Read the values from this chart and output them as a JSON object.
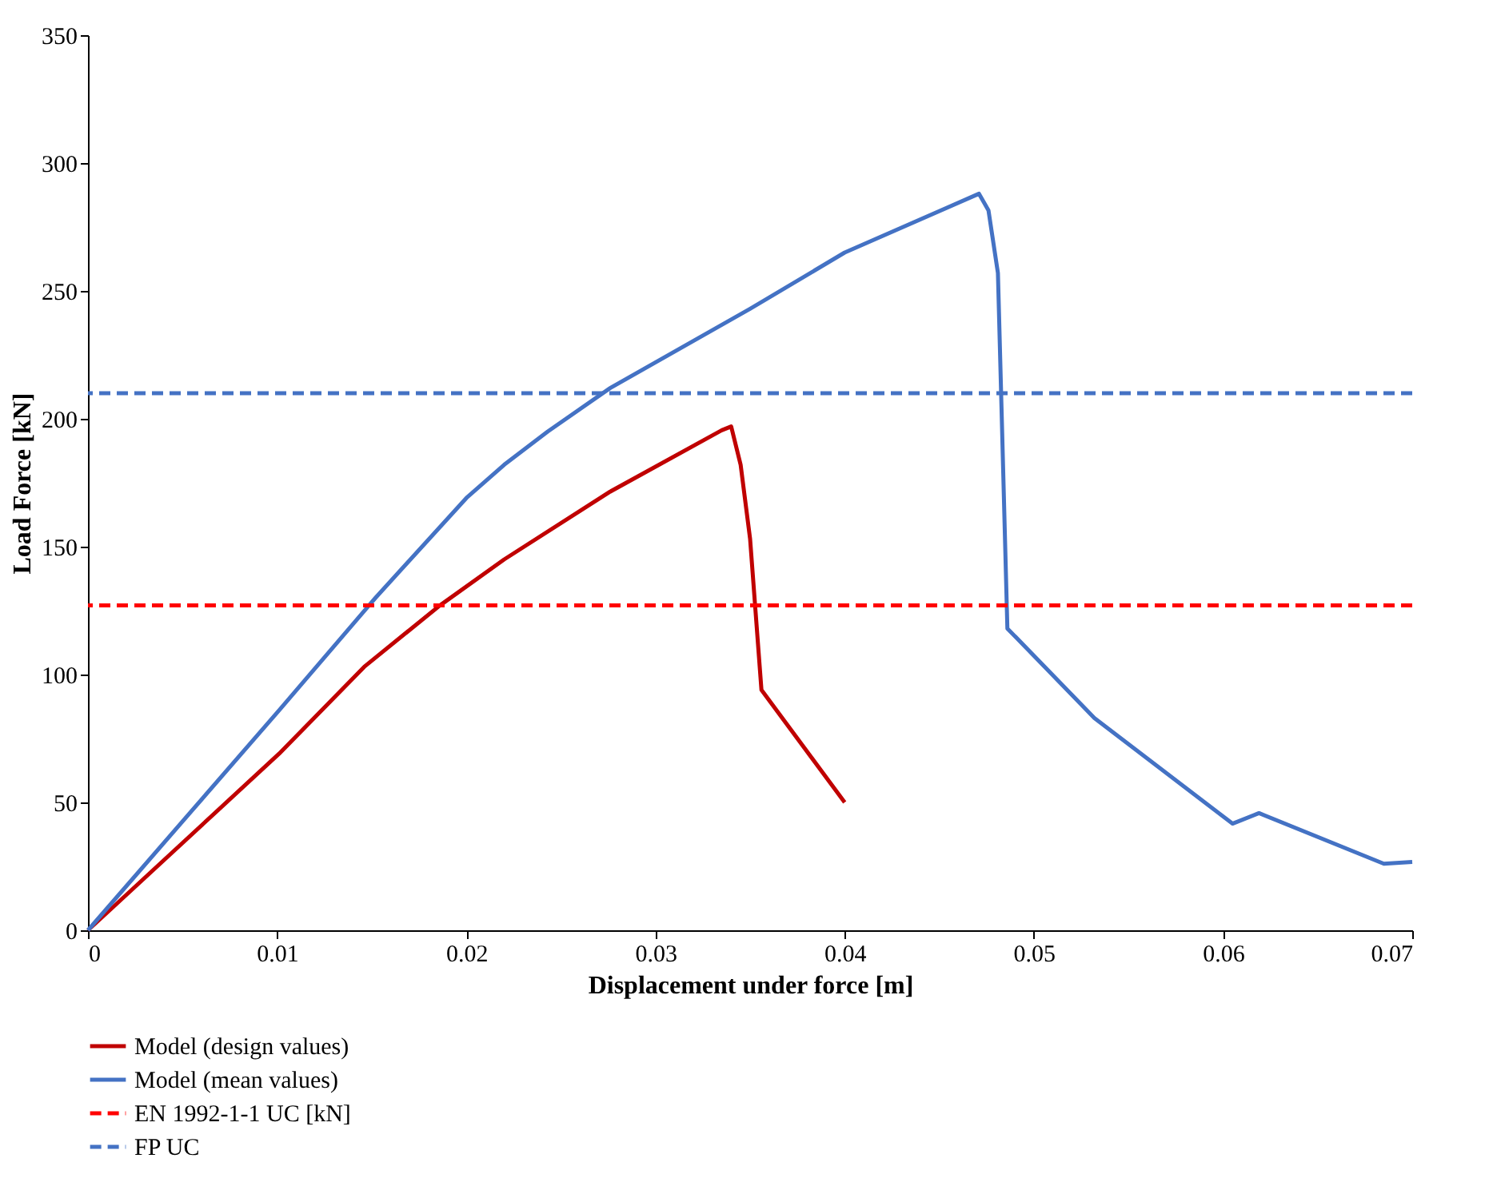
{
  "chart_data": {
    "type": "line",
    "xlabel": "Displacement under force [m]",
    "ylabel": "Load Force [kN]",
    "xlim": [
      0,
      0.07
    ],
    "xticks": [
      0,
      0.01,
      0.02,
      0.03,
      0.04,
      0.05,
      0.06,
      0.07
    ],
    "ylim": [
      0,
      350
    ],
    "yticks": [
      0,
      50,
      100,
      150,
      200,
      250,
      300,
      350
    ],
    "grid": false,
    "legend": "bottom",
    "line_style": "solid",
    "series": [
      {
        "name": "Model (design values)",
        "color": "#c00000",
        "x": [
          0,
          0.0101,
          0.0146,
          0.0186,
          0.022,
          0.0276,
          0.0335,
          0.034,
          0.0345,
          0.035,
          0.0356,
          0.04
        ],
        "values": [
          0,
          69,
          103,
          127,
          145,
          171.5,
          195.5,
          197,
          182,
          153,
          94,
          50
        ]
      },
      {
        "name": "Model (mean values)",
        "color": "#4472c4",
        "x": [
          0,
          0.0101,
          0.0152,
          0.02,
          0.022,
          0.0243,
          0.0276,
          0.035,
          0.04,
          0.0471,
          0.0476,
          0.0481,
          0.0486,
          0.0532,
          0.0605,
          0.0619,
          0.0685,
          0.07
        ],
        "values": [
          0,
          86,
          130,
          169,
          182,
          195,
          212,
          243,
          265,
          288,
          281.5,
          257,
          118,
          83,
          41.7,
          45.8,
          26,
          26.7
        ]
      }
    ],
    "ref_lines": [
      {
        "axis": "y",
        "value": 127,
        "label": "EN 1992-1-1 UC [kN]",
        "color": "#ff0000",
        "line_style": "dashed"
      },
      {
        "axis": "y",
        "value": 210,
        "label": "FP UC",
        "color": "#4472c4",
        "line_style": "dashed"
      }
    ]
  }
}
